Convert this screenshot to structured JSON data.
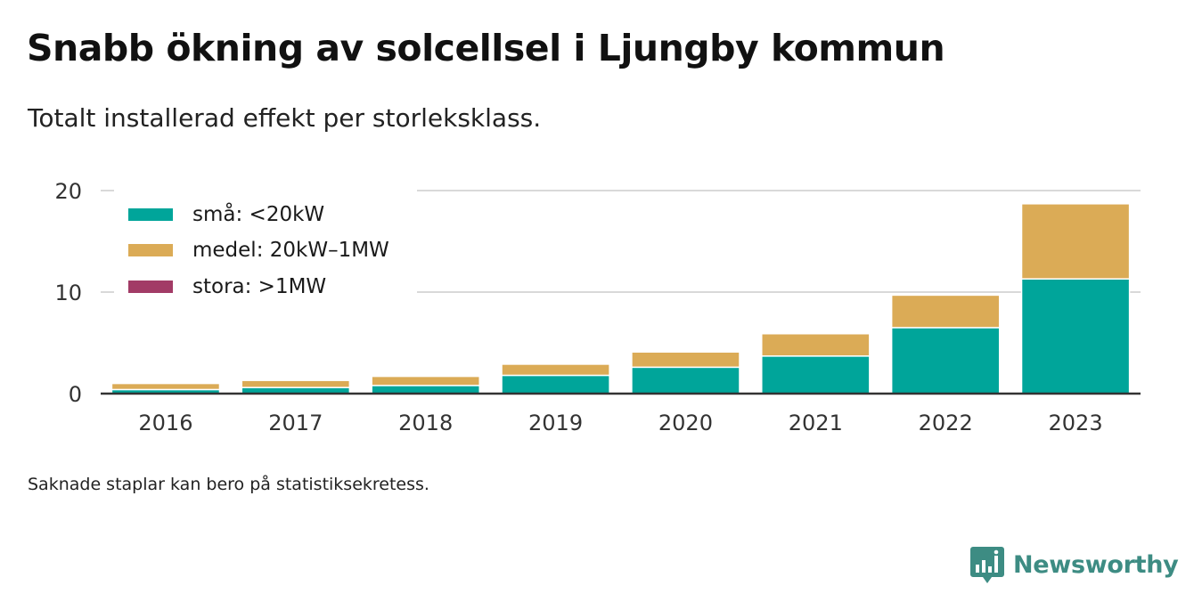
{
  "title": "Snabb ökning av solcellsel i Ljungby kommun",
  "subtitle": "Totalt installerad effekt per storleksklass.",
  "note": "Saknade staplar kan bero på statistiksekretess.",
  "brand": {
    "name": "Newsworthy",
    "icon": "newsworthy-logo-icon",
    "color": "#3d8c83"
  },
  "colors": {
    "small": "#00a59a",
    "medium": "#dbab56",
    "large": "#a23b66",
    "grid": "#d9d9d9",
    "axis": "#333333"
  },
  "legend": [
    {
      "label": "små: <20kW",
      "color": "#00a59a"
    },
    {
      "label": "medel: 20kW–1MW",
      "color": "#dbab56"
    },
    {
      "label": "stora: >1MW",
      "color": "#a23b66"
    }
  ],
  "chart_data": {
    "type": "bar",
    "stacked": true,
    "categories": [
      "2016",
      "2017",
      "2018",
      "2019",
      "2020",
      "2021",
      "2022",
      "2023"
    ],
    "series": [
      {
        "name": "små: <20kW",
        "color": "#00a59a",
        "values": [
          0.4,
          0.6,
          0.8,
          1.8,
          2.6,
          3.7,
          6.5,
          11.3
        ]
      },
      {
        "name": "medel: 20kW–1MW",
        "color": "#dbab56",
        "values": [
          0.6,
          0.7,
          0.9,
          1.1,
          1.5,
          2.2,
          3.2,
          7.4
        ]
      },
      {
        "name": "stora: >1MW",
        "color": "#a23b66",
        "values": [
          0,
          0,
          0,
          0,
          0,
          0,
          0,
          0
        ]
      }
    ],
    "yticks": [
      0,
      10,
      20
    ],
    "ylim": [
      0,
      20
    ],
    "grid": true,
    "legend_position": "top-left"
  }
}
